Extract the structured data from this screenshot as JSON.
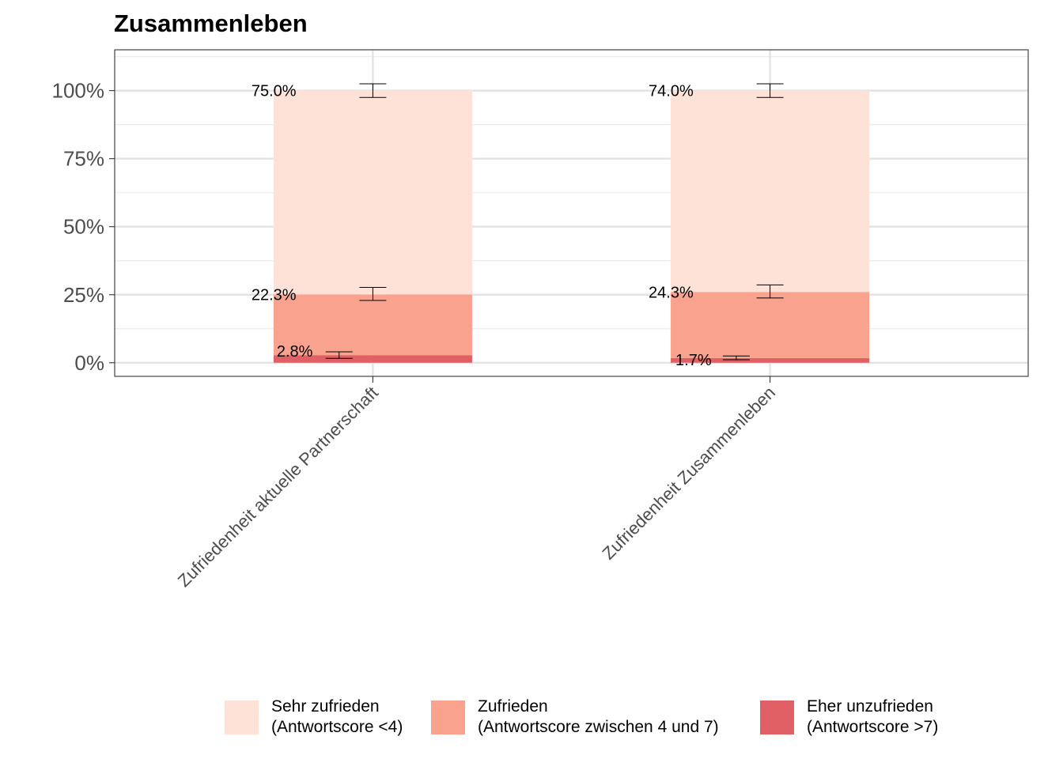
{
  "chart_data": {
    "type": "bar",
    "stacked": true,
    "title": "Zusammenleben",
    "xlabel": "",
    "ylabel": "",
    "ylim": [
      -0.05,
      1.15
    ],
    "yticks": [
      0,
      0.25,
      0.5,
      0.75,
      1.0
    ],
    "ytick_labels": [
      "0%",
      "25%",
      "50%",
      "75%",
      "100%"
    ],
    "grid": true,
    "legend_position": "bottom",
    "categories": [
      "Zufriedenheit aktuelle Partnerschaft",
      "Zufriedenheit Zusammenleben"
    ],
    "series": [
      {
        "name": "Eher unzufrieden",
        "legend_line2": "(Antwortscore >7)",
        "color": "#e06065",
        "values": [
          0.028,
          0.017
        ],
        "labels": [
          "2.8%",
          "1.7%"
        ],
        "error_bars": [
          [
            0.016,
            0.04
          ],
          [
            0.011,
            0.025
          ]
        ]
      },
      {
        "name": "Zufrieden",
        "legend_line2": "(Antwortscore zwischen 4 und 7)",
        "color": "#f9a28e",
        "values": [
          0.223,
          0.243
        ],
        "labels": [
          "22.3%",
          "24.3%"
        ],
        "error_bars": [
          [
            0.229,
            0.277
          ],
          [
            0.238,
            0.286
          ]
        ]
      },
      {
        "name": "Sehr zufrieden",
        "legend_line2": "(Antwortscore <4)",
        "color": "#fee2d8",
        "values": [
          0.75,
          0.74
        ],
        "labels": [
          "75.0%",
          "74.0%"
        ],
        "error_bars": [
          [
            0.975,
            1.025
          ],
          [
            0.975,
            1.025
          ]
        ]
      }
    ]
  }
}
